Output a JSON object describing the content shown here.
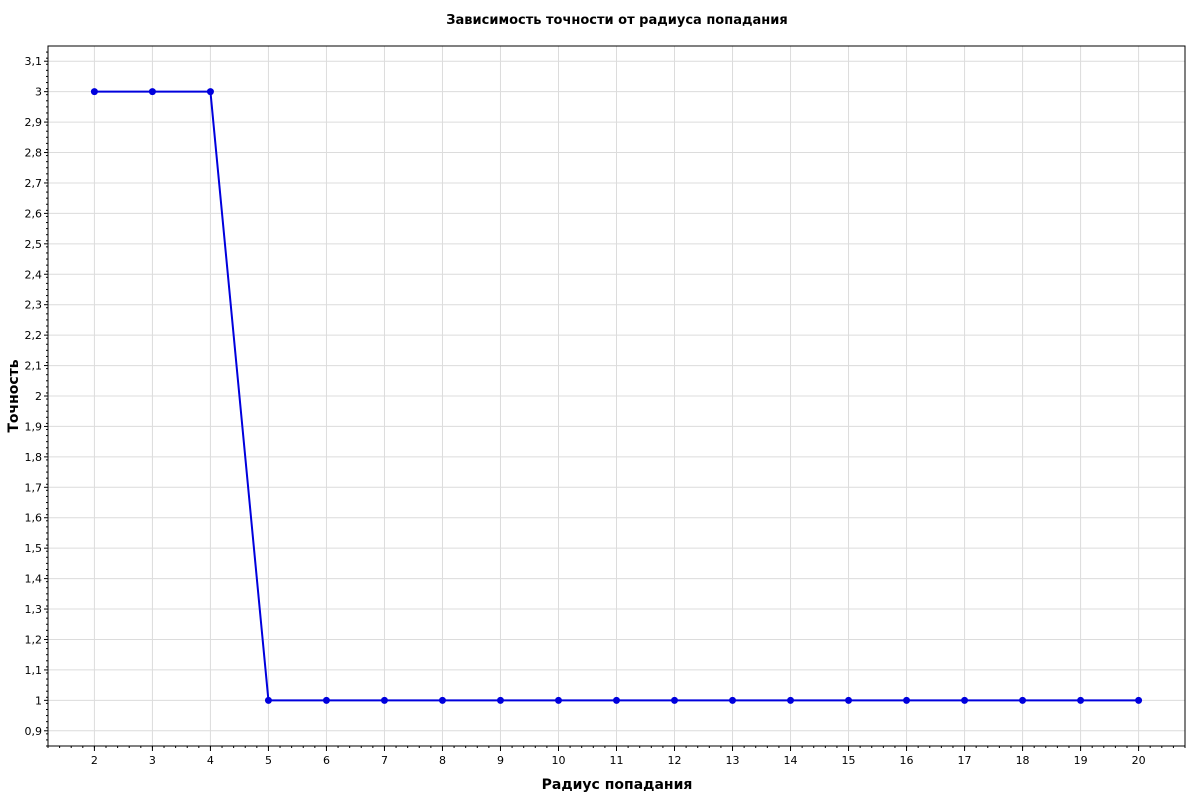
{
  "chart_data": {
    "type": "line",
    "title": "Зависимость точности от радиуса попадания",
    "xlabel": "Радиус попадания",
    "ylabel": "Точность",
    "x": [
      2,
      3,
      4,
      5,
      6,
      7,
      8,
      9,
      10,
      11,
      12,
      13,
      14,
      15,
      16,
      17,
      18,
      19,
      20
    ],
    "series": [
      {
        "values": [
          3,
          3,
          3,
          1,
          1,
          1,
          1,
          1,
          1,
          1,
          1,
          1,
          1,
          1,
          1,
          1,
          1,
          1,
          1
        ],
        "color": "#0000DD",
        "marker": "circle"
      }
    ],
    "xlim": [
      1.2,
      20.8
    ],
    "ylim": [
      0.85,
      3.15
    ],
    "x_ticks": [
      "2",
      "3",
      "4",
      "5",
      "6",
      "7",
      "8",
      "9",
      "10",
      "11",
      "12",
      "13",
      "14",
      "15",
      "16",
      "17",
      "18",
      "19",
      "20"
    ],
    "y_ticks": [
      "0,9",
      "1",
      "1,1",
      "1,2",
      "1,3",
      "1,4",
      "1,5",
      "1,6",
      "1,7",
      "1,8",
      "1,9",
      "2",
      "2,1",
      "2,2",
      "2,3",
      "2,4",
      "2,5",
      "2,6",
      "2,7",
      "2,8",
      "2,9",
      "3",
      "3,1"
    ],
    "grid": true,
    "grid_color": "#DCDCDC",
    "legend": false
  }
}
